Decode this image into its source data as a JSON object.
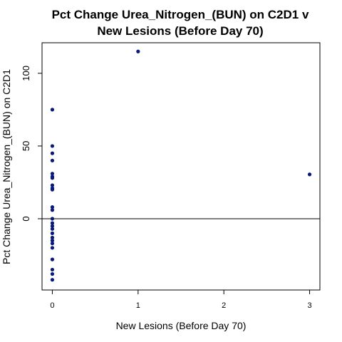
{
  "chart_data": {
    "type": "scatter",
    "title_lines": [
      "Pct Change Urea_Nitrogen_(BUN) on C2D1 v",
      "New Lesions (Before Day 70)"
    ],
    "xlabel": "New Lesions (Before Day 70)",
    "ylabel": "Pct Change Urea_Nitrogen_(BUN) on C2D1",
    "xlim": [
      -0.12,
      3.12
    ],
    "ylim": [
      -49,
      121
    ],
    "x_ticks": [
      0,
      1,
      2,
      3
    ],
    "x_tick_labels": [
      "0",
      "1",
      "2",
      "3"
    ],
    "y_ticks": [
      0,
      50,
      100
    ],
    "y_tick_labels": [
      "0",
      "50",
      "100"
    ],
    "reference_line_y": 0,
    "grid": false,
    "point_color": "#0a1a78",
    "points": [
      {
        "x": 1,
        "y": 115
      },
      {
        "x": 3,
        "y": 30.5
      },
      {
        "x": 0,
        "y": 75
      },
      {
        "x": 0,
        "y": 50
      },
      {
        "x": 0,
        "y": 45
      },
      {
        "x": 0,
        "y": 40
      },
      {
        "x": 0,
        "y": 31
      },
      {
        "x": 0,
        "y": 29
      },
      {
        "x": 0,
        "y": 28
      },
      {
        "x": 0,
        "y": 23
      },
      {
        "x": 0,
        "y": 21
      },
      {
        "x": 0,
        "y": 20
      },
      {
        "x": 0,
        "y": 8
      },
      {
        "x": 0,
        "y": 6
      },
      {
        "x": 0,
        "y": 0
      },
      {
        "x": 0,
        "y": -3
      },
      {
        "x": 0,
        "y": -5
      },
      {
        "x": 0,
        "y": -7
      },
      {
        "x": 0,
        "y": -10
      },
      {
        "x": 0,
        "y": -13
      },
      {
        "x": 0,
        "y": -15
      },
      {
        "x": 0,
        "y": -17
      },
      {
        "x": 0,
        "y": -20
      },
      {
        "x": 0,
        "y": -28
      },
      {
        "x": 0,
        "y": -35
      },
      {
        "x": 0,
        "y": -38
      },
      {
        "x": 0,
        "y": -42
      }
    ]
  }
}
